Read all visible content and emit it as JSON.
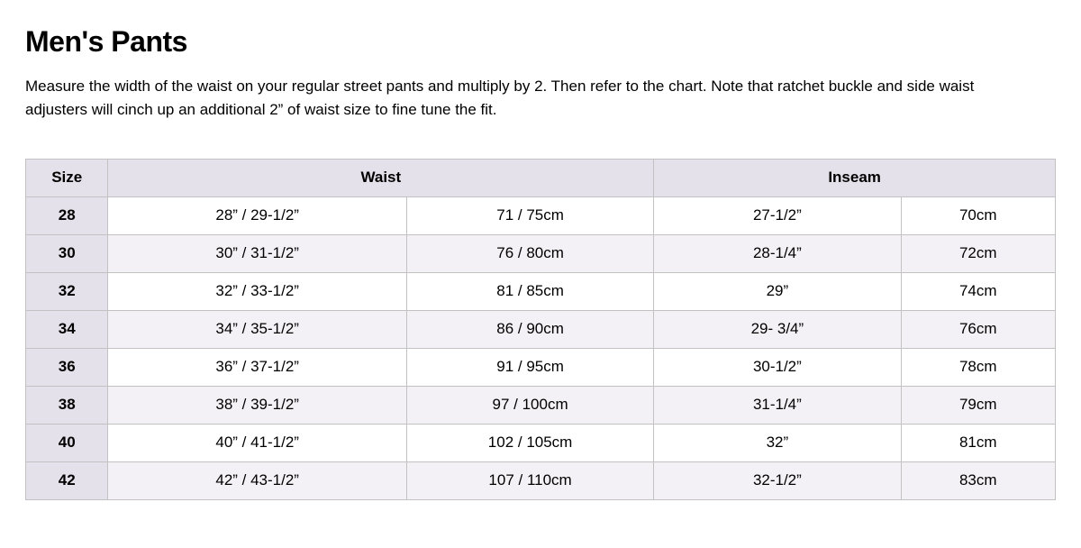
{
  "heading": "Men's Pants",
  "description": "Measure the width of the waist on your regular street pants and multiply by 2. Then refer to the chart. Note that ratchet buckle and side waist adjusters will cinch up an additional 2” of waist size to fine tune the fit.",
  "table": {
    "type": "table",
    "columns": [
      "Size",
      "Waist",
      "Inseam"
    ],
    "column_spans": [
      1,
      2,
      2
    ],
    "column_widths_pct": [
      8,
      29,
      24,
      24,
      15
    ],
    "header_bg": "#e5e1ea",
    "row_alt_bg": "#f3f1f5",
    "border_color": "#c2c2c2",
    "text_color": "#000000",
    "font_size_pt": 13,
    "header_font_weight": 700,
    "rows": [
      {
        "size": "28",
        "waist_in": "28” / 29-1/2”",
        "waist_cm": "71 / 75cm",
        "inseam_in": "27-1/2”",
        "inseam_cm": "70cm"
      },
      {
        "size": "30",
        "waist_in": "30” / 31-1/2”",
        "waist_cm": "76 / 80cm",
        "inseam_in": "28-1/4”",
        "inseam_cm": "72cm"
      },
      {
        "size": "32",
        "waist_in": "32” / 33-1/2”",
        "waist_cm": "81 / 85cm",
        "inseam_in": "29”",
        "inseam_cm": "74cm"
      },
      {
        "size": "34",
        "waist_in": "34” / 35-1/2”",
        "waist_cm": "86 / 90cm",
        "inseam_in": "29- 3/4”",
        "inseam_cm": "76cm"
      },
      {
        "size": "36",
        "waist_in": "36” / 37-1/2”",
        "waist_cm": "91 / 95cm",
        "inseam_in": "30-1/2”",
        "inseam_cm": "78cm"
      },
      {
        "size": "38",
        "waist_in": "38” / 39-1/2”",
        "waist_cm": "97 / 100cm",
        "inseam_in": "31-1/4”",
        "inseam_cm": "79cm"
      },
      {
        "size": "40",
        "waist_in": "40” / 41-1/2”",
        "waist_cm": "102 / 105cm",
        "inseam_in": "32”",
        "inseam_cm": "81cm"
      },
      {
        "size": "42",
        "waist_in": "42” / 43-1/2”",
        "waist_cm": "107 / 110cm",
        "inseam_in": "32-1/2”",
        "inseam_cm": "83cm"
      }
    ]
  }
}
